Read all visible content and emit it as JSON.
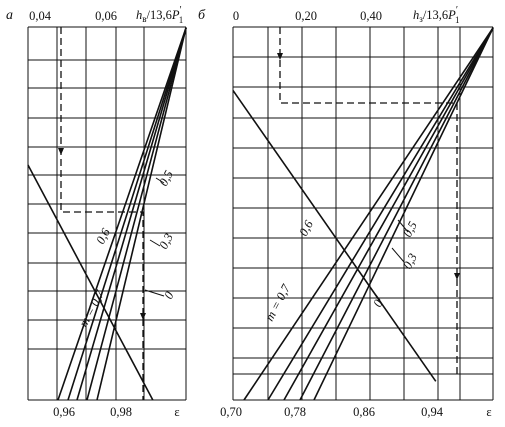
{
  "chart_data": [
    {
      "type": "line",
      "panel_label": "а",
      "top_axis": {
        "label_prefix": "h",
        "label_sub": "в",
        "label_mid": "/13,6",
        "label_p": "P",
        "label_p_prime": "′",
        "label_p_sub": "1",
        "tick_labels": [
          "0,04",
          "0,06"
        ],
        "range": [
          0.03,
          0.1
        ]
      },
      "bottom_axis": {
        "label": "ε",
        "tick_labels": [
          "0,96",
          "0,98"
        ],
        "range": [
          0.95,
          1.0
        ]
      },
      "grid": true,
      "m_prefix": "m = ",
      "series": [
        {
          "name": "0,7",
          "bottom_eps": 0.9575
        },
        {
          "name": "0,6",
          "bottom_eps": 0.961
        },
        {
          "name": "0,5",
          "bottom_eps": 0.9645
        },
        {
          "name": "0,3",
          "bottom_eps": 0.968
        },
        {
          "name": "0",
          "bottom_eps": 0.9715
        }
      ],
      "vertex_eps": 1.0,
      "decreasing_line": {
        "x_start": 0.0,
        "y_start": 0.37,
        "x_end": 0.79,
        "y_end": 1.0
      },
      "dashed_path": {
        "x_start": 0.3,
        "y_turn": 0.47,
        "x_turn": 0.75,
        "ends_at": "bottom"
      }
    },
    {
      "type": "line",
      "panel_label": "б",
      "top_axis": {
        "label_prefix": "h",
        "label_sub": "з",
        "label_mid": "/13,6",
        "label_p": "P",
        "label_p_prime": "′",
        "label_p_sub": "1",
        "tick_labels": [
          "0",
          "0,20",
          "0,40"
        ],
        "range": [
          -0.02,
          0.6
        ]
      },
      "bottom_axis": {
        "label": "ε",
        "tick_labels": [
          "0,70",
          "0,78",
          "0,86",
          "0,94"
        ],
        "range": [
          0.7,
          1.0
        ]
      },
      "grid": true,
      "m_prefix": "m = ",
      "series": [
        {
          "name": "0,7",
          "bottom_eps": 0.702
        },
        {
          "name": "0,6",
          "bottom_eps": 0.76
        },
        {
          "name": "0,5",
          "bottom_eps": 0.772
        },
        {
          "name": "0,3",
          "bottom_eps": 0.783
        },
        {
          "name": "0",
          "bottom_eps": 0.794
        }
      ],
      "vertex_eps": 1.0,
      "decreasing_line": {
        "x_start": 0.0,
        "y_start": 0.17,
        "x_end": 0.78,
        "y_end": 0.95
      },
      "dashed_path": {
        "x_start": 0.17,
        "y_turn": 0.2,
        "x_turn": 0.86,
        "ends_at": "0.7"
      }
    }
  ],
  "colors": {
    "ink": "#111111",
    "background": "#ffffff"
  }
}
